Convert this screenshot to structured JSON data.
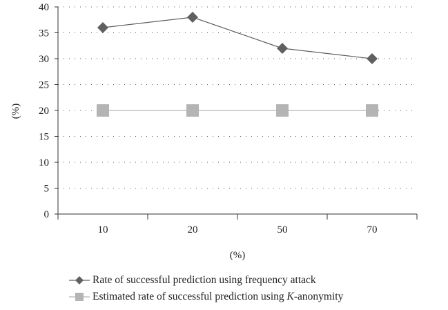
{
  "chart_data": {
    "type": "line",
    "categories": [
      "10",
      "20",
      "50",
      "70"
    ],
    "xlabel": "(%)",
    "ylabel": "(%)",
    "ylim": [
      0,
      40
    ],
    "yticks": [
      0,
      5,
      10,
      15,
      20,
      25,
      30,
      35,
      40
    ],
    "grid": "horizontal dotted",
    "series": [
      {
        "name": "Rate of successful prediction using frequency attack",
        "marker": "diamond",
        "color": "#606060",
        "values": [
          36,
          38,
          32,
          30
        ]
      },
      {
        "name": "Estimated rate of successful prediction using K-anonymity",
        "marker": "square",
        "color": "#b4b4b4",
        "values": [
          20,
          20,
          20,
          20
        ]
      }
    ],
    "legend_position": "bottom"
  },
  "legend": {
    "item1": "Rate of successful prediction using frequency attack",
    "item2_prefix": "Estimated rate of successful prediction using ",
    "item2_italic": "K",
    "item2_suffix": "-anonymity"
  }
}
